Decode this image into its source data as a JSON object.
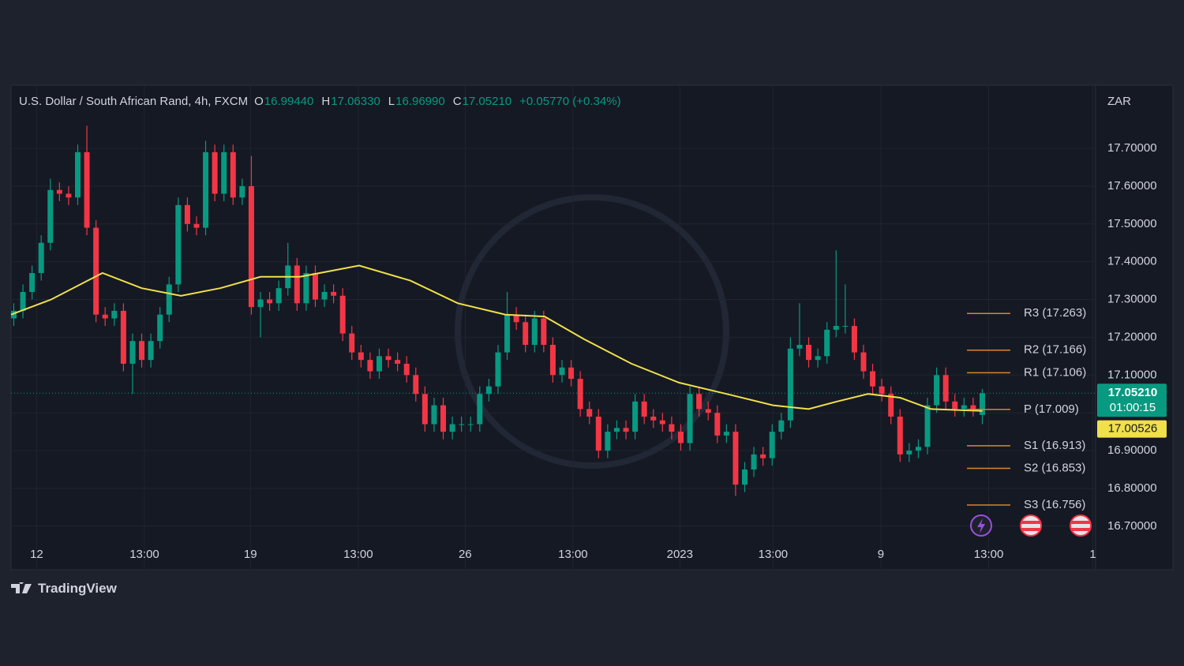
{
  "chart_data": {
    "type": "candlestick",
    "title": "U.S. Dollar / South African Rand, 4h, FXCM",
    "ohlc_readout": [
      {
        "key": "O",
        "text": "16.99440"
      },
      {
        "key": "H",
        "text": "17.06330"
      },
      {
        "key": "L",
        "text": "16.96990"
      },
      {
        "key": "C",
        "text": "17.05210"
      }
    ],
    "change": "+0.05770 (+0.34%)",
    "y_axis_label": "ZAR",
    "up_color": "#089981",
    "down_color": "#f23645",
    "x": [
      0,
      1,
      2,
      3,
      4,
      5,
      6,
      7,
      8,
      9,
      10,
      11,
      12,
      13,
      14,
      15,
      16,
      17,
      18,
      19,
      20,
      21,
      22,
      23,
      24,
      25,
      26,
      27,
      28,
      29,
      30,
      31,
      32,
      33,
      34,
      35,
      36,
      37,
      38,
      39,
      40,
      41,
      42,
      43,
      44,
      45,
      46,
      47,
      48,
      49,
      50,
      51,
      52,
      53,
      54,
      55,
      56,
      57,
      58,
      59,
      60,
      61,
      62,
      63,
      64,
      65,
      66,
      67,
      68,
      69,
      70,
      71,
      72,
      73,
      74,
      75,
      76,
      77,
      78,
      79,
      80,
      81,
      82,
      83,
      84,
      85,
      86,
      87,
      88,
      89,
      90,
      91,
      92,
      93,
      94,
      95,
      96,
      97,
      98,
      99,
      100,
      101,
      102,
      103,
      104,
      105,
      106
    ],
    "open": [
      17.25,
      17.27,
      17.32,
      17.37,
      17.45,
      17.59,
      17.58,
      17.57,
      17.69,
      17.49,
      17.26,
      17.25,
      17.27,
      17.13,
      17.19,
      17.14,
      17.19,
      17.26,
      17.34,
      17.55,
      17.5,
      17.49,
      17.69,
      17.58,
      17.69,
      17.57,
      17.6,
      17.28,
      17.3,
      17.29,
      17.33,
      17.39,
      17.29,
      17.37,
      17.3,
      17.32,
      17.31,
      17.21,
      17.16,
      17.14,
      17.11,
      17.15,
      17.14,
      17.13,
      17.1,
      17.05,
      16.97,
      17.02,
      16.95,
      16.97,
      16.97,
      16.97,
      17.05,
      17.07,
      17.16,
      17.26,
      17.24,
      17.18,
      17.25,
      17.18,
      17.1,
      17.12,
      17.09,
      17.01,
      16.99,
      16.9,
      16.95,
      16.96,
      16.95,
      17.03,
      16.99,
      16.98,
      16.97,
      16.95,
      16.92,
      17.05,
      17.01,
      17.0,
      16.94,
      16.95,
      16.81,
      16.85,
      16.89,
      16.88,
      16.95,
      16.98,
      17.17,
      17.18,
      17.14,
      17.15,
      17.22,
      17.23,
      17.23,
      17.16,
      17.11,
      17.07,
      17.05,
      16.99,
      16.89,
      16.9,
      16.91,
      17.02,
      17.1,
      17.03,
      17.01,
      17.02,
      16.9944
    ],
    "high": [
      17.29,
      17.34,
      17.39,
      17.47,
      17.62,
      17.61,
      17.6,
      17.71,
      17.76,
      17.51,
      17.28,
      17.29,
      17.29,
      17.21,
      17.21,
      17.21,
      17.28,
      17.36,
      17.57,
      17.57,
      17.52,
      17.72,
      17.71,
      17.71,
      17.71,
      17.62,
      17.68,
      17.32,
      17.32,
      17.35,
      17.45,
      17.41,
      17.39,
      17.39,
      17.34,
      17.34,
      17.33,
      17.23,
      17.18,
      17.16,
      17.17,
      17.17,
      17.16,
      17.15,
      17.12,
      17.07,
      17.04,
      17.04,
      16.99,
      16.99,
      16.99,
      17.07,
      17.09,
      17.18,
      17.32,
      17.28,
      17.26,
      17.27,
      17.27,
      17.2,
      17.14,
      17.14,
      17.11,
      17.03,
      17.01,
      16.97,
      16.98,
      16.98,
      17.05,
      17.05,
      17.01,
      17.0,
      16.99,
      16.97,
      17.07,
      17.07,
      17.03,
      17.02,
      16.97,
      16.97,
      16.87,
      16.91,
      16.91,
      16.97,
      17.0,
      17.2,
      17.29,
      17.2,
      17.17,
      17.24,
      17.43,
      17.34,
      17.25,
      17.18,
      17.13,
      17.09,
      17.07,
      17.01,
      16.92,
      16.93,
      17.04,
      17.12,
      17.12,
      17.05,
      17.04,
      17.04,
      17.0633
    ],
    "low": [
      17.23,
      17.25,
      17.3,
      17.35,
      17.43,
      17.56,
      17.55,
      17.55,
      17.47,
      17.24,
      17.23,
      17.23,
      17.11,
      17.05,
      17.12,
      17.12,
      17.17,
      17.24,
      17.32,
      17.48,
      17.47,
      17.47,
      17.56,
      17.56,
      17.55,
      17.55,
      17.26,
      17.2,
      17.27,
      17.27,
      17.31,
      17.27,
      17.27,
      17.28,
      17.28,
      17.29,
      17.19,
      17.14,
      17.12,
      17.09,
      17.09,
      17.12,
      17.11,
      17.08,
      17.03,
      16.95,
      16.95,
      16.93,
      16.93,
      16.95,
      16.95,
      16.95,
      17.03,
      17.05,
      17.14,
      17.22,
      17.16,
      17.16,
      17.16,
      17.08,
      17.08,
      17.07,
      16.99,
      16.97,
      16.88,
      16.88,
      16.93,
      16.93,
      16.93,
      16.97,
      16.96,
      16.95,
      16.93,
      16.9,
      16.9,
      16.99,
      16.98,
      16.92,
      16.92,
      16.78,
      16.79,
      16.83,
      16.86,
      16.86,
      16.93,
      16.96,
      17.15,
      17.12,
      17.12,
      17.13,
      17.2,
      17.21,
      17.14,
      17.09,
      17.05,
      17.03,
      16.97,
      16.87,
      16.87,
      16.88,
      16.89,
      17.0,
      17.01,
      16.99,
      16.99,
      16.99,
      16.9699
    ],
    "close": [
      17.27,
      17.32,
      17.37,
      17.45,
      17.59,
      17.58,
      17.57,
      17.69,
      17.49,
      17.26,
      17.25,
      17.27,
      17.13,
      17.19,
      17.14,
      17.19,
      17.26,
      17.34,
      17.55,
      17.5,
      17.49,
      17.69,
      17.58,
      17.69,
      17.57,
      17.6,
      17.28,
      17.3,
      17.29,
      17.33,
      17.39,
      17.29,
      17.37,
      17.3,
      17.32,
      17.31,
      17.21,
      17.16,
      17.14,
      17.11,
      17.15,
      17.14,
      17.13,
      17.1,
      17.05,
      16.97,
      17.02,
      16.95,
      16.97,
      16.97,
      16.97,
      17.05,
      17.07,
      17.16,
      17.26,
      17.24,
      17.18,
      17.25,
      17.18,
      17.1,
      17.12,
      17.09,
      17.01,
      16.99,
      16.9,
      16.95,
      16.96,
      16.95,
      17.03,
      16.99,
      16.98,
      16.97,
      16.95,
      16.92,
      17.05,
      17.01,
      17.0,
      16.94,
      16.95,
      16.81,
      16.85,
      16.89,
      16.88,
      16.95,
      16.98,
      17.17,
      17.18,
      17.14,
      17.15,
      17.22,
      17.23,
      17.23,
      17.16,
      17.11,
      17.07,
      17.05,
      16.99,
      16.89,
      16.9,
      16.91,
      17.02,
      17.1,
      17.03,
      17.01,
      17.02,
      17.01,
      17.0521
    ],
    "moving_average": {
      "color": "#f0e04a",
      "x": [
        -0.3,
        4.1,
        9.7,
        14.0,
        18.3,
        22.6,
        27.0,
        31.3,
        37.8,
        43.4,
        48.6,
        53.8,
        58.1,
        62.4,
        67.6,
        72.8,
        78.0,
        83.1,
        87.0,
        90.1,
        93.5,
        97.0,
        100.4,
        106
      ],
      "values": [
        17.26,
        17.3,
        17.37,
        17.33,
        17.31,
        17.33,
        17.36,
        17.36,
        17.39,
        17.35,
        17.29,
        17.26,
        17.255,
        17.195,
        17.13,
        17.08,
        17.05,
        17.02,
        17.01,
        17.03,
        17.05,
        17.04,
        17.01,
        17.00526
      ]
    },
    "pivots": {
      "color": "#d9862b",
      "levels": [
        {
          "value": 17.263,
          "label": "R3 (17.263)"
        },
        {
          "value": 17.166,
          "label": "R2 (17.166)"
        },
        {
          "value": 17.106,
          "label": "R1 (17.106)"
        },
        {
          "value": 17.009,
          "label": "P (17.009)"
        },
        {
          "value": 16.913,
          "label": "S1 (16.913)"
        },
        {
          "value": 16.853,
          "label": "S2 (16.853)"
        },
        {
          "value": 16.756,
          "label": "S3 (16.756)"
        }
      ]
    },
    "last_price": {
      "value": 17.0521,
      "label": "17.05210",
      "countdown": "01:00:15"
    },
    "ma_last": {
      "value": 17.00526,
      "label": "17.00526"
    },
    "xlim": [
      -0.3,
      118.4
    ],
    "xticks": [
      {
        "value": 2.5,
        "label": "12"
      },
      {
        "value": 14.3,
        "label": "13:00"
      },
      {
        "value": 25.9,
        "label": "19"
      },
      {
        "value": 37.7,
        "label": "13:00"
      },
      {
        "value": 49.4,
        "label": "26"
      },
      {
        "value": 61.2,
        "label": "13:00"
      },
      {
        "value": 72.9,
        "label": "2023"
      },
      {
        "value": 83.1,
        "label": "13:00"
      },
      {
        "value": 94.9,
        "label": "9"
      },
      {
        "value": 106.7,
        "label": "13:00"
      },
      {
        "value": 118.1,
        "label": "1"
      }
    ],
    "ylim": [
      16.662,
      17.863
    ],
    "yticks": [
      {
        "value": 16.7,
        "label": "16.70000"
      },
      {
        "value": 16.8,
        "label": "16.80000"
      },
      {
        "value": 16.9,
        "label": "16.90000"
      },
      {
        "value": 17.0,
        "label": "17.00000"
      },
      {
        "value": 17.1,
        "label": "17.10000"
      },
      {
        "value": 17.2,
        "label": "17.20000"
      },
      {
        "value": 17.3,
        "label": "17.30000"
      },
      {
        "value": 17.4,
        "label": "17.40000"
      },
      {
        "value": 17.5,
        "label": "17.50000"
      },
      {
        "value": 17.6,
        "label": "17.60000"
      },
      {
        "value": 17.7,
        "label": "17.70000"
      }
    ],
    "grid": true
  },
  "branding": "TradingView"
}
